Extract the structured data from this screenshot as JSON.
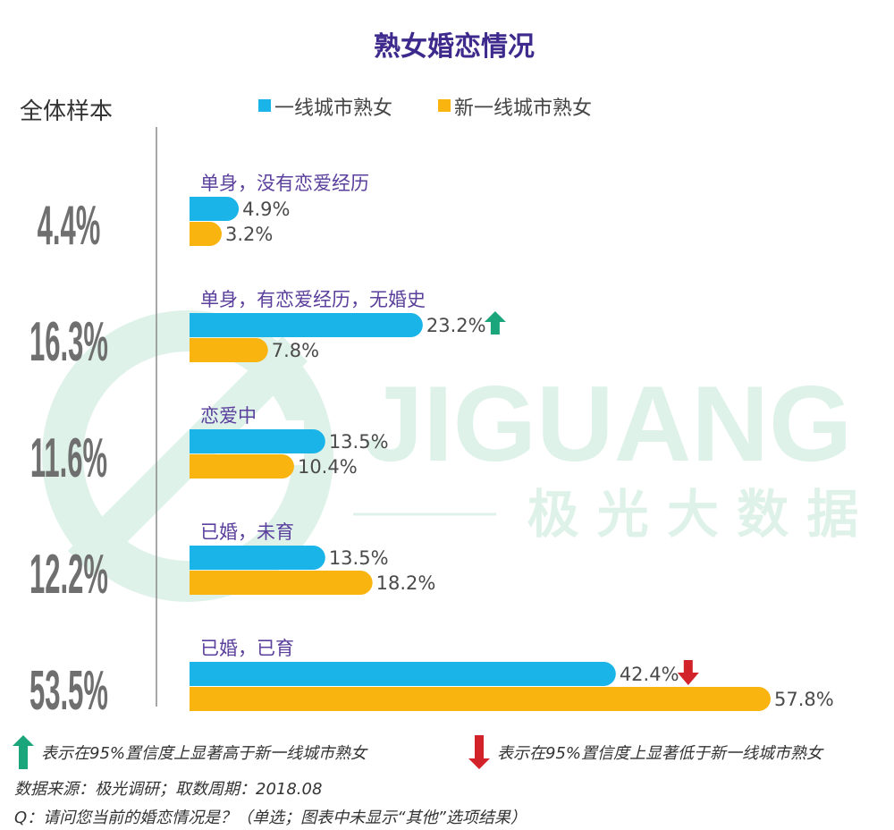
{
  "colors": {
    "title": "#3d2a8c",
    "category": "#5a3f9c",
    "series1": "#1ab4e8",
    "series2": "#f9b40f",
    "up_arrow": "#1aa67a",
    "down_arrow": "#d2232a",
    "overall": "#6f6f6f",
    "value_text": "#4a4a4a",
    "watermark": "#dff2ea"
  },
  "watermark": {
    "text": "JIGUANG",
    "subtext": "极 光 大 数 据"
  },
  "chart_data": {
    "type": "bar",
    "orientation": "horizontal",
    "title": "熟女婚恋情况",
    "overall_label": "全体样本",
    "categories": [
      "单身，没有恋爱经历",
      "单身，有恋爱经历，无婚史",
      "恋爱中",
      "已婚，未育",
      "已婚，已育"
    ],
    "overall_values": [
      4.4,
      16.3,
      11.6,
      12.2,
      53.5
    ],
    "series": [
      {
        "name": "一线城市熟女",
        "values": [
          4.9,
          23.2,
          13.5,
          13.5,
          42.4
        ]
      },
      {
        "name": "新一线城市熟女",
        "values": [
          3.2,
          7.8,
          10.4,
          18.2,
          57.8
        ]
      }
    ],
    "markers": [
      {
        "category_index": 1,
        "series_index": 0,
        "type": "up"
      },
      {
        "category_index": 4,
        "series_index": 0,
        "type": "down"
      }
    ],
    "legend_position": "top",
    "unit": "%",
    "xlim": [
      0,
      57.8
    ]
  },
  "footer": {
    "up_note": "表示在95%置信度上显著高于新一线城市熟女",
    "down_note": "表示在95%置信度上显著低于新一线城市熟女",
    "source": "数据来源：极光调研；取数周期：2018.08",
    "question": "Q：请问您当前的婚恋情况是？（单选；图表中未显示“其他”选项结果）"
  }
}
